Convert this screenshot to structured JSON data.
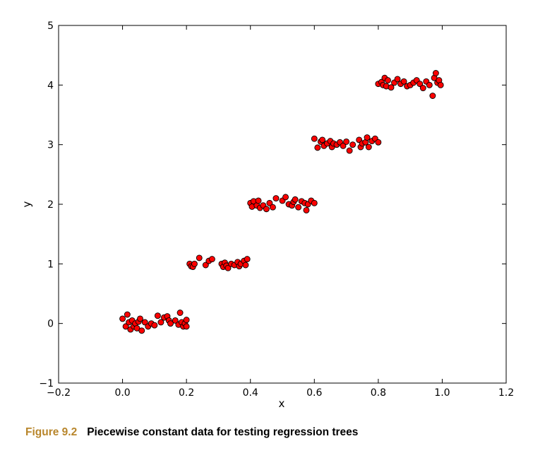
{
  "caption": {
    "label": "Figure 9.2",
    "text": "Piecewise constant data for testing regression trees"
  },
  "chart_data": {
    "type": "scatter",
    "title": "",
    "xlabel": "x",
    "ylabel": "y",
    "xlim": [
      -0.2,
      1.2
    ],
    "ylim": [
      -1,
      5
    ],
    "xticks": [
      "−0.2",
      "0.0",
      "0.2",
      "0.4",
      "0.6",
      "0.8",
      "1.0",
      "1.2"
    ],
    "yticks": [
      "−1",
      "0",
      "1",
      "2",
      "3",
      "4",
      "5"
    ],
    "grid": false,
    "marker_color": "#ff0000",
    "marker_edge_color": "#000000",
    "series": [
      {
        "points": [
          [
            0.0,
            0.08
          ],
          [
            0.01,
            -0.05
          ],
          [
            0.015,
            0.15
          ],
          [
            0.02,
            0.02
          ],
          [
            0.025,
            -0.1
          ],
          [
            0.03,
            0.05
          ],
          [
            0.035,
            -0.05
          ],
          [
            0.04,
            0.0
          ],
          [
            0.045,
            -0.08
          ],
          [
            0.05,
            0.03
          ],
          [
            0.055,
            0.08
          ],
          [
            0.06,
            -0.12
          ],
          [
            0.07,
            0.02
          ],
          [
            0.08,
            -0.05
          ],
          [
            0.09,
            0.0
          ],
          [
            0.1,
            -0.03
          ],
          [
            0.11,
            0.13
          ],
          [
            0.12,
            0.02
          ],
          [
            0.13,
            0.1
          ],
          [
            0.14,
            0.12
          ],
          [
            0.145,
            0.05
          ],
          [
            0.15,
            0.0
          ],
          [
            0.165,
            0.05
          ],
          [
            0.175,
            -0.02
          ],
          [
            0.18,
            0.18
          ],
          [
            0.185,
            0.02
          ],
          [
            0.19,
            -0.05
          ],
          [
            0.195,
            0.0
          ],
          [
            0.2,
            -0.05
          ],
          [
            0.2,
            0.06
          ],
          [
            0.21,
            1.0
          ],
          [
            0.215,
            0.96
          ],
          [
            0.22,
            0.95
          ],
          [
            0.225,
            1.0
          ],
          [
            0.24,
            1.1
          ],
          [
            0.26,
            0.98
          ],
          [
            0.27,
            1.05
          ],
          [
            0.28,
            1.08
          ],
          [
            0.31,
            1.0
          ],
          [
            0.315,
            0.95
          ],
          [
            0.32,
            1.02
          ],
          [
            0.325,
            0.97
          ],
          [
            0.33,
            0.93
          ],
          [
            0.34,
            1.0
          ],
          [
            0.35,
            0.98
          ],
          [
            0.36,
            1.03
          ],
          [
            0.365,
            0.96
          ],
          [
            0.37,
            1.0
          ],
          [
            0.38,
            1.05
          ],
          [
            0.385,
            0.98
          ],
          [
            0.39,
            1.08
          ],
          [
            0.4,
            2.02
          ],
          [
            0.405,
            1.96
          ],
          [
            0.41,
            2.05
          ],
          [
            0.42,
            1.98
          ],
          [
            0.425,
            2.06
          ],
          [
            0.43,
            1.94
          ],
          [
            0.44,
            1.98
          ],
          [
            0.45,
            1.92
          ],
          [
            0.46,
            2.02
          ],
          [
            0.47,
            1.95
          ],
          [
            0.48,
            2.1
          ],
          [
            0.5,
            2.06
          ],
          [
            0.51,
            2.12
          ],
          [
            0.52,
            2.0
          ],
          [
            0.53,
            1.98
          ],
          [
            0.535,
            2.04
          ],
          [
            0.54,
            2.08
          ],
          [
            0.55,
            1.95
          ],
          [
            0.56,
            2.05
          ],
          [
            0.57,
            2.02
          ],
          [
            0.575,
            1.9
          ],
          [
            0.58,
            2.0
          ],
          [
            0.59,
            2.06
          ],
          [
            0.6,
            2.02
          ],
          [
            0.6,
            3.1
          ],
          [
            0.61,
            2.95
          ],
          [
            0.62,
            3.05
          ],
          [
            0.625,
            3.08
          ],
          [
            0.63,
            2.98
          ],
          [
            0.64,
            3.02
          ],
          [
            0.65,
            3.06
          ],
          [
            0.655,
            2.96
          ],
          [
            0.66,
            3.02
          ],
          [
            0.67,
            3.0
          ],
          [
            0.68,
            3.04
          ],
          [
            0.69,
            2.98
          ],
          [
            0.7,
            3.05
          ],
          [
            0.71,
            2.9
          ],
          [
            0.72,
            3.0
          ],
          [
            0.74,
            3.08
          ],
          [
            0.745,
            2.96
          ],
          [
            0.75,
            3.02
          ],
          [
            0.76,
            3.04
          ],
          [
            0.765,
            3.12
          ],
          [
            0.77,
            2.96
          ],
          [
            0.78,
            3.06
          ],
          [
            0.79,
            3.1
          ],
          [
            0.8,
            3.04
          ],
          [
            0.8,
            4.02
          ],
          [
            0.81,
            4.05
          ],
          [
            0.815,
            4.0
          ],
          [
            0.82,
            4.12
          ],
          [
            0.825,
            3.98
          ],
          [
            0.83,
            4.08
          ],
          [
            0.84,
            3.96
          ],
          [
            0.85,
            4.04
          ],
          [
            0.86,
            4.1
          ],
          [
            0.87,
            4.02
          ],
          [
            0.88,
            4.06
          ],
          [
            0.89,
            3.98
          ],
          [
            0.9,
            4.0
          ],
          [
            0.91,
            4.04
          ],
          [
            0.92,
            4.08
          ],
          [
            0.93,
            4.02
          ],
          [
            0.94,
            3.95
          ],
          [
            0.95,
            4.06
          ],
          [
            0.96,
            4.0
          ],
          [
            0.97,
            3.82
          ],
          [
            0.975,
            4.12
          ],
          [
            0.98,
            4.2
          ],
          [
            0.985,
            4.04
          ],
          [
            0.99,
            4.08
          ],
          [
            0.995,
            4.0
          ]
        ]
      }
    ]
  }
}
